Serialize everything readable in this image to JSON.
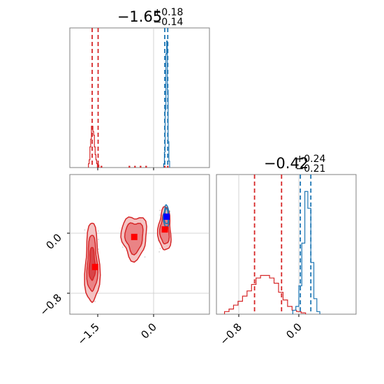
{
  "chart_data": {
    "type": "corner",
    "params": [
      {
        "title_main": "−1.65",
        "title_plus": "+0.18",
        "title_minus": "−0.14",
        "tick_labels": [
          "−1.5",
          "0.0"
        ],
        "tick_values": [
          -1.5,
          0.0
        ],
        "range": [
          -2.0,
          0.5
        ]
      },
      {
        "title_main": "−0.42",
        "title_plus": "+0.24",
        "title_minus": "−0.21",
        "tick_labels": [
          "−0.8",
          "0.0"
        ],
        "tick_values": [
          -0.8,
          0.0
        ],
        "range": [
          -1.0,
          0.25
        ]
      }
    ],
    "y_tick_labels_2d": [
      "0.0",
      "−0.8"
    ],
    "colors": {
      "red": "#d62728",
      "blue": "#1f77b4",
      "marker_blue": "#0000ff",
      "marker_red": "#ff0000"
    },
    "series": [
      {
        "color_key": "red",
        "quantiles_p1": [
          -1.65,
          -1.49
        ],
        "quantiles_p2": [
          -0.59,
          -0.23
        ],
        "hist_p1": [
          {
            "x": -1.74,
            "y": 0.03
          },
          {
            "x": -1.72,
            "y": 0.06
          },
          {
            "x": -1.7,
            "y": 0.16
          },
          {
            "x": -1.68,
            "y": 0.22
          },
          {
            "x": -1.66,
            "y": 0.32
          },
          {
            "x": -1.64,
            "y": 0.32
          },
          {
            "x": -1.62,
            "y": 0.28
          },
          {
            "x": -1.6,
            "y": 0.25
          },
          {
            "x": -1.58,
            "y": 0.16
          },
          {
            "x": -1.56,
            "y": 0.1
          },
          {
            "x": -1.54,
            "y": 0.06
          },
          {
            "x": -1.52,
            "y": 0.03
          },
          {
            "x": -1.48,
            "y": 0.02
          },
          {
            "x": -1.4,
            "y": 0.01
          },
          {
            "x": -0.65,
            "y": 0.01
          },
          {
            "x": -0.5,
            "y": 0.01
          },
          {
            "x": -0.35,
            "y": 0.01
          },
          {
            "x": -0.2,
            "y": 0.01
          },
          {
            "x": 0.3,
            "y": 0.01
          },
          {
            "x": 0.38,
            "y": 0.01
          }
        ],
        "hist_p2": [
          {
            "x": -0.96,
            "y": 0.02
          },
          {
            "x": -0.9,
            "y": 0.04
          },
          {
            "x": -0.84,
            "y": 0.07
          },
          {
            "x": -0.78,
            "y": 0.1
          },
          {
            "x": -0.72,
            "y": 0.14
          },
          {
            "x": -0.66,
            "y": 0.18
          },
          {
            "x": -0.6,
            "y": 0.23
          },
          {
            "x": -0.54,
            "y": 0.28
          },
          {
            "x": -0.48,
            "y": 0.3
          },
          {
            "x": -0.42,
            "y": 0.3
          },
          {
            "x": -0.36,
            "y": 0.28
          },
          {
            "x": -0.3,
            "y": 0.24
          },
          {
            "x": -0.24,
            "y": 0.17
          },
          {
            "x": -0.18,
            "y": 0.11
          },
          {
            "x": -0.12,
            "y": 0.06
          },
          {
            "x": -0.06,
            "y": 0.03
          },
          {
            "x": 0.0,
            "y": 0.02
          },
          {
            "x": 0.06,
            "y": 0.01
          }
        ],
        "modes": [
          {
            "x": -1.65,
            "y": -0.42,
            "sx": 0.08,
            "sy": 0.22,
            "level": 3
          },
          {
            "x": -0.52,
            "y": -0.05,
            "sx": 0.14,
            "sy": 0.12,
            "level": 2
          },
          {
            "x": 0.3,
            "y": 0.05,
            "sx": 0.07,
            "sy": 0.12,
            "level": 2
          }
        ],
        "best_fit": {
          "x": -1.57,
          "y": -0.45
        }
      },
      {
        "color_key": "blue",
        "quantiles_p1": [
          0.3,
          0.38
        ],
        "quantiles_p2": [
          0.02,
          0.16
        ],
        "hist_p1": [
          {
            "x": 0.28,
            "y": 0.03
          },
          {
            "x": 0.3,
            "y": 0.12
          },
          {
            "x": 0.32,
            "y": 0.45
          },
          {
            "x": 0.34,
            "y": 0.88
          },
          {
            "x": 0.36,
            "y": 0.98
          },
          {
            "x": 0.38,
            "y": 0.6
          },
          {
            "x": 0.4,
            "y": 0.2
          },
          {
            "x": 0.42,
            "y": 0.05
          }
        ],
        "hist_p2": [
          {
            "x": -0.06,
            "y": 0.03
          },
          {
            "x": -0.02,
            "y": 0.06
          },
          {
            "x": 0.02,
            "y": 0.22
          },
          {
            "x": 0.06,
            "y": 0.55
          },
          {
            "x": 0.1,
            "y": 0.95
          },
          {
            "x": 0.14,
            "y": 0.82
          },
          {
            "x": 0.18,
            "y": 0.4
          },
          {
            "x": 0.22,
            "y": 0.12
          },
          {
            "x": 0.26,
            "y": 0.02
          }
        ],
        "modes": [
          {
            "x": 0.34,
            "y": 0.22,
            "sx": 0.03,
            "sy": 0.06,
            "level": 2
          }
        ],
        "best_fit": {
          "x": 0.35,
          "y": 0.22
        }
      }
    ],
    "best_fit_red_p1": -0.52,
    "best_fit_red_p2": -0.05,
    "marker_red_extra": {
      "x": 0.3,
      "y": 0.05
    }
  }
}
